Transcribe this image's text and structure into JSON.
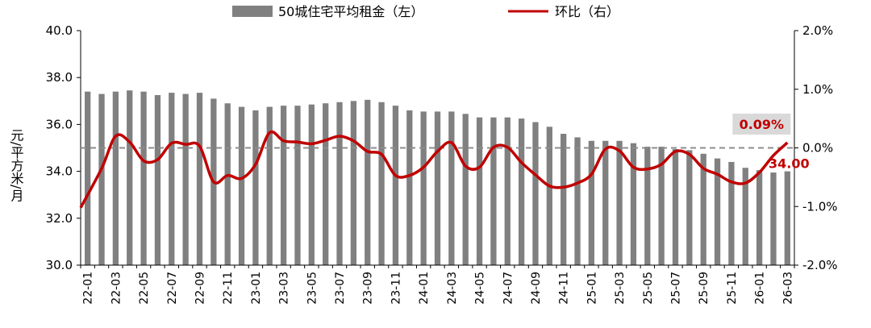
{
  "chart_data": {
    "type": "bar+line",
    "legend": [
      {
        "name": "50城住宅平均租金（左）",
        "kind": "bar",
        "color": "#808080"
      },
      {
        "name": "环比（右）",
        "kind": "line",
        "color": "#c00000"
      }
    ],
    "legend_position": "top",
    "ylabel": "元/平方米/月",
    "y_left": {
      "min": 30,
      "max": 40,
      "ticks": [
        "30.0",
        "32.0",
        "34.0",
        "36.0",
        "38.0",
        "40.0"
      ]
    },
    "y_right": {
      "min": -2,
      "max": 2,
      "ticks": [
        "-2.0%",
        "-1.0%",
        "0.0%",
        "1.0%",
        "2.0%"
      ]
    },
    "x_tick_labels": [
      "22-01",
      "22-03",
      "22-05",
      "22-07",
      "22-09",
      "22-11",
      "23-01",
      "23-03",
      "23-05",
      "23-07",
      "23-09",
      "23-11",
      "24-01",
      "24-03",
      "24-05",
      "24-07",
      "24-09",
      "24-11",
      "25-01",
      "25-03",
      "25-05",
      "25-07",
      "25-09",
      "25-11",
      "26-01",
      "26-03"
    ],
    "categories": [
      "22-01",
      "22-02",
      "22-03",
      "22-04",
      "22-05",
      "22-06",
      "22-07",
      "22-08",
      "22-09",
      "22-10",
      "22-11",
      "22-12",
      "23-01",
      "23-02",
      "23-03",
      "23-04",
      "23-05",
      "23-06",
      "23-07",
      "23-08",
      "23-09",
      "23-10",
      "23-11",
      "23-12",
      "24-01",
      "24-02",
      "24-03",
      "24-04",
      "24-05",
      "24-06",
      "24-07",
      "24-08",
      "24-09",
      "24-10",
      "24-11",
      "24-12",
      "25-01",
      "25-02",
      "25-03",
      "25-04",
      "25-05",
      "25-06",
      "25-07",
      "25-08",
      "25-09",
      "25-10",
      "25-11",
      "25-12",
      "26-01",
      "26-02",
      "26-03"
    ],
    "series": [
      {
        "name": "50城住宅平均租金（左）",
        "type": "bar",
        "values": [
          37.4,
          37.3,
          37.4,
          37.45,
          37.4,
          37.25,
          37.35,
          37.3,
          37.35,
          37.1,
          36.9,
          36.75,
          36.6,
          36.75,
          36.8,
          36.8,
          36.85,
          36.9,
          36.95,
          37.0,
          37.05,
          36.95,
          36.8,
          36.6,
          36.55,
          36.55,
          36.55,
          36.45,
          36.3,
          36.3,
          36.3,
          36.25,
          36.1,
          35.9,
          35.6,
          35.45,
          35.3,
          35.3,
          35.3,
          35.2,
          35.05,
          35.05,
          34.95,
          34.9,
          34.75,
          34.55,
          34.4,
          34.15,
          34.05,
          33.95,
          34.0
        ]
      },
      {
        "name": "环比（右）",
        "type": "line",
        "values": [
          -1.02,
          -0.35,
          0.2,
          0.1,
          -0.22,
          -0.2,
          0.08,
          0.06,
          0.03,
          -0.58,
          -0.47,
          -0.52,
          -0.28,
          0.26,
          0.12,
          0.1,
          0.07,
          0.13,
          0.2,
          0.12,
          -0.06,
          -0.11,
          -0.47,
          -0.47,
          -0.33,
          -0.06,
          0.09,
          -0.31,
          -0.33,
          0.01,
          0.01,
          -0.25,
          -0.46,
          -0.65,
          -0.67,
          -0.6,
          -0.45,
          -0.02,
          -0.05,
          -0.33,
          -0.36,
          -0.28,
          -0.06,
          -0.11,
          -0.35,
          -0.45,
          -0.58,
          -0.6,
          -0.42,
          -0.13,
          0.09
        ]
      }
    ],
    "reference_line": {
      "axis": "right",
      "value": 0.0,
      "style": "dashed"
    },
    "annotations": {
      "last_mom": "0.09%",
      "last_rent": "34.00"
    }
  }
}
